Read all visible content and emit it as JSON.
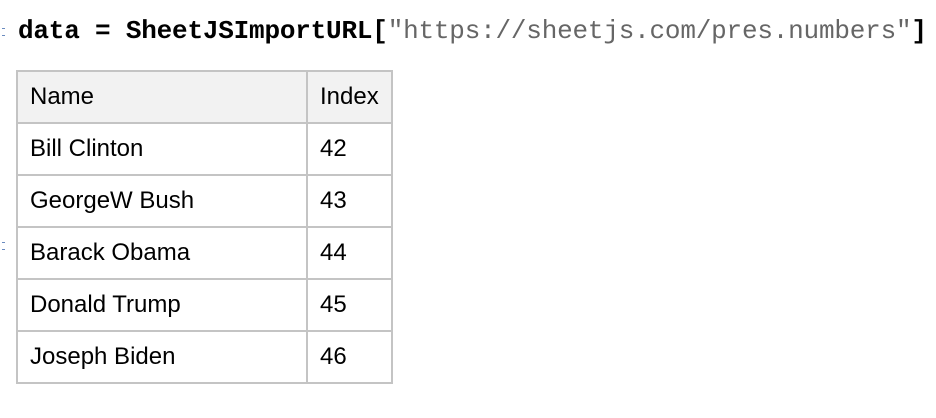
{
  "input": {
    "assignment": "data = ",
    "function": "SheetJSImportURL",
    "open_bracket": "[",
    "argument": "\"https://sheetjs.com/pres.numbers\"",
    "close_bracket": "]"
  },
  "output_table": {
    "headers": [
      "Name",
      "Index"
    ],
    "rows": [
      [
        "Bill Clinton",
        "42"
      ],
      [
        "GeorgeW Bush",
        "43"
      ],
      [
        "Barack Obama",
        "44"
      ],
      [
        "Donald Trump",
        "45"
      ],
      [
        "Joseph Biden",
        "46"
      ]
    ]
  }
}
